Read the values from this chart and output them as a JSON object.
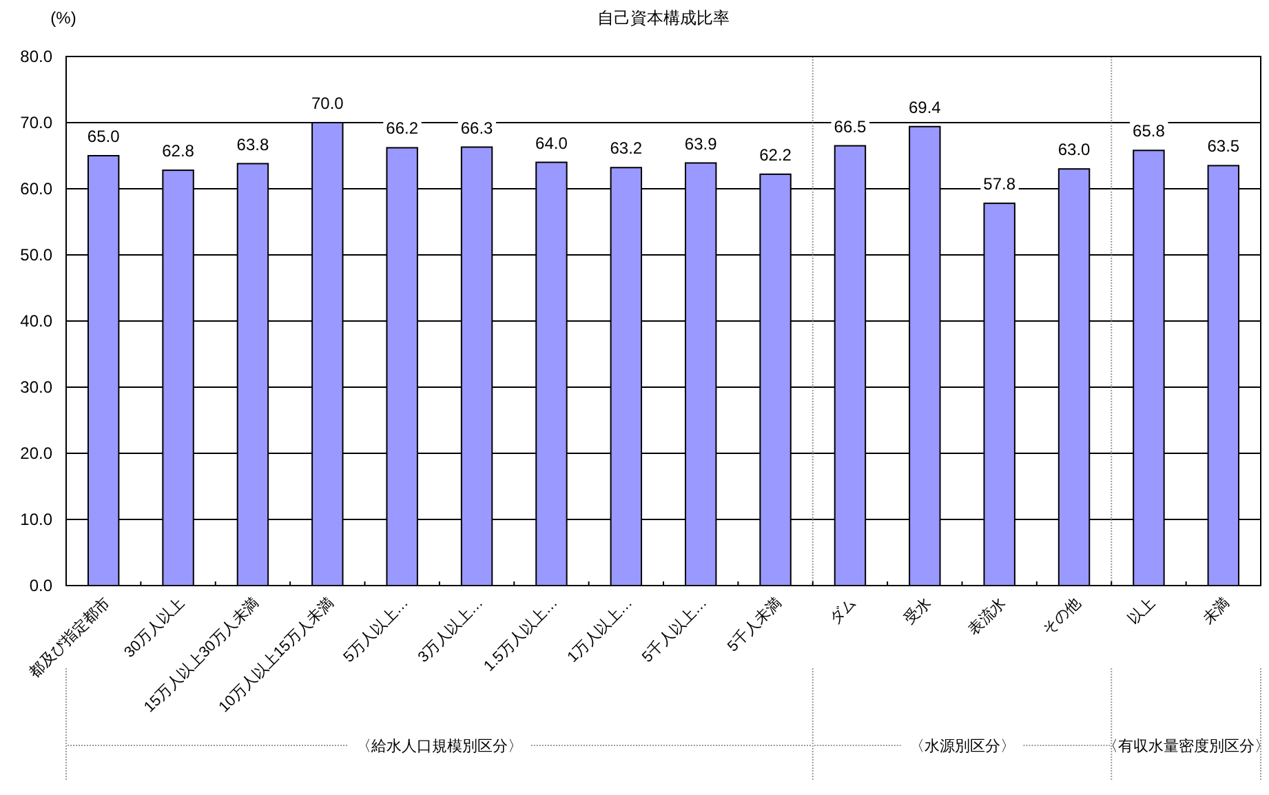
{
  "chart_data": {
    "type": "bar",
    "title": "自己資本構成比率",
    "ylabel": "(%)",
    "categories": [
      "都及び指定都市",
      "30万人以上",
      "15万人以上30万人未満",
      "10万人以上15万人未満",
      "5万人以上…",
      "3万人以上…",
      "1.5万人以上…",
      "1万人以上…",
      "5千人以上…",
      "5千人未満",
      "ダム",
      "受水",
      "表流水",
      "その他",
      "以上",
      "未満"
    ],
    "values": [
      65.0,
      62.8,
      63.8,
      70.0,
      66.2,
      66.3,
      64.0,
      63.2,
      63.9,
      62.2,
      66.5,
      69.4,
      57.8,
      63.0,
      65.8,
      63.5
    ],
    "value_labels": [
      "65.0",
      "62.8",
      "63.8",
      "70.0",
      "66.2",
      "66.3",
      "64.0",
      "63.2",
      "63.9",
      "62.2",
      "66.5",
      "69.4",
      "57.8",
      "63.0",
      "65.8",
      "63.5"
    ],
    "color": "#9999ff",
    "ylim": [
      0,
      80
    ],
    "yticks": [
      {
        "value": 0,
        "label": "0.0"
      },
      {
        "value": 10,
        "label": "10.0"
      },
      {
        "value": 20,
        "label": "20.0"
      },
      {
        "value": 30,
        "label": "30.0"
      },
      {
        "value": 40,
        "label": "40.0"
      },
      {
        "value": 50,
        "label": "50.0"
      },
      {
        "value": 60,
        "label": "60.0"
      },
      {
        "value": 70,
        "label": "70.0"
      },
      {
        "value": 80,
        "label": "80.0"
      }
    ],
    "grid": "y",
    "annotations": [
      "〈給水人口規模別区分〉",
      "〈水源別区分〉",
      "〈有収水量密度別区分〉"
    ]
  }
}
